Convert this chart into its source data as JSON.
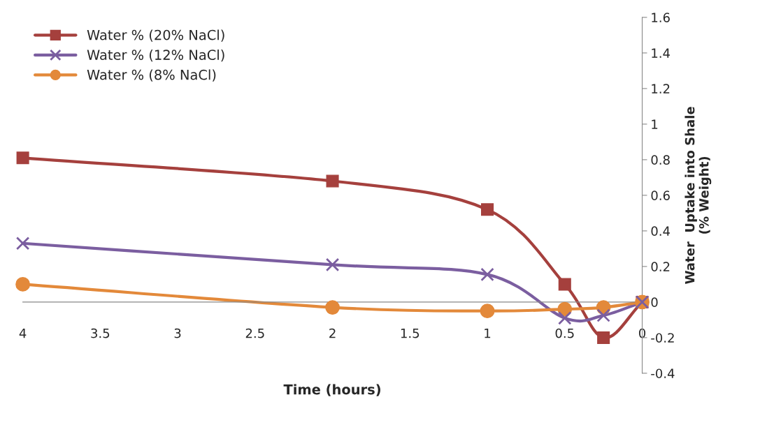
{
  "chart_data": {
    "type": "line",
    "xlabel": "Time (hours)",
    "ylabel": "Water  Uptake into Shale\n(% Weight)",
    "x": [
      4,
      2,
      1,
      0.5,
      0.25,
      0
    ],
    "series": [
      {
        "name": "Water % (20% NaCl)",
        "color": "#a5403d",
        "marker": "square",
        "values": [
          0.81,
          0.68,
          0.52,
          0.1,
          -0.2,
          0
        ]
      },
      {
        "name": "Water % (12% NaCl)",
        "color": "#7b5ea0",
        "marker": "cross",
        "values": [
          0.33,
          0.21,
          0.155,
          -0.09,
          -0.075,
          0
        ]
      },
      {
        "name": "Water % (8% NaCl)",
        "color": "#e3893a",
        "marker": "circle",
        "values": [
          0.1,
          -0.03,
          -0.05,
          -0.04,
          -0.03,
          0
        ]
      }
    ],
    "xlim": [
      4,
      0
    ],
    "xticks": [
      4,
      3.5,
      3,
      2.5,
      2,
      1.5,
      1,
      0.5,
      0
    ],
    "ylim": [
      -0.4,
      1.6
    ],
    "yticks": [
      -0.4,
      -0.2,
      0,
      0.2,
      0.4,
      0.6,
      0.8,
      1,
      1.2,
      1.4,
      1.6
    ],
    "grid": false,
    "legend": "top left",
    "line_style": "solid"
  }
}
